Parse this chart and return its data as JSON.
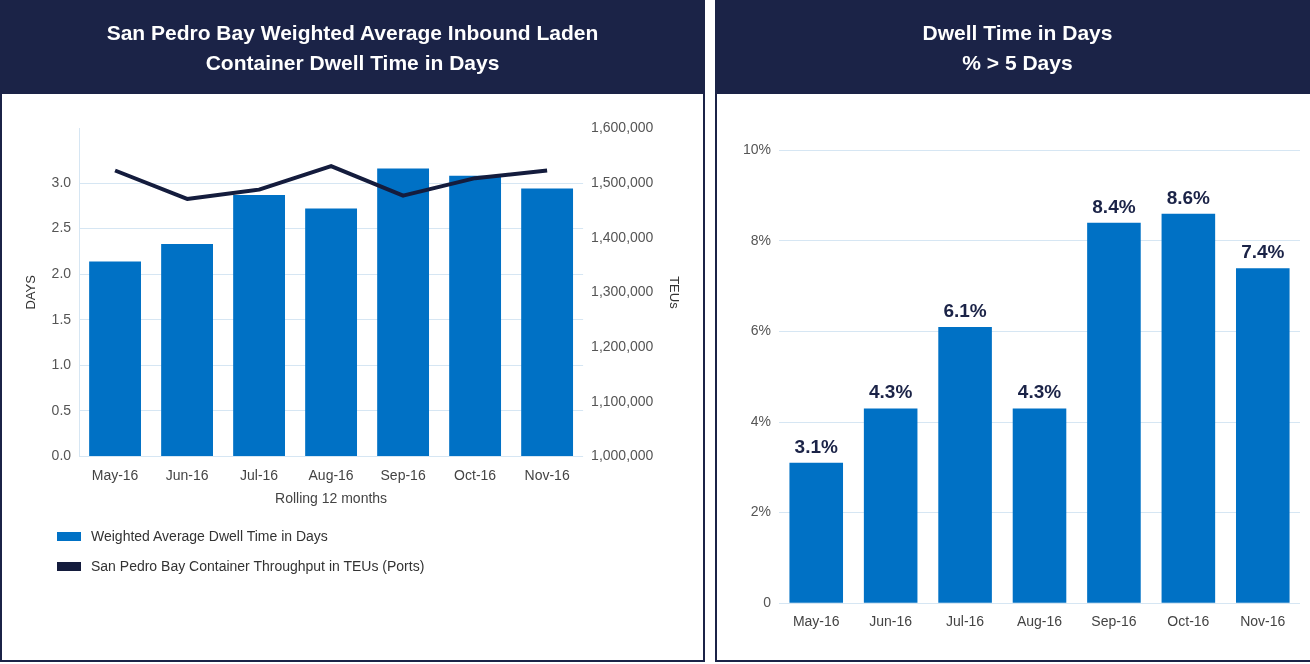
{
  "chart_data": [
    {
      "type": "bar",
      "title": "San Pedro Bay Weighted Average Inbound Laden Container Dwell Time in Days",
      "xlabel": "Rolling 12 months",
      "ylabel": "DAYS",
      "y2label": "TEUs",
      "categories": [
        "May-16",
        "Jun-16",
        "Jul-16",
        "Aug-16",
        "Sep-16",
        "Oct-16",
        "Nov-16"
      ],
      "series": [
        {
          "name": "Weighted Average Dwell Time in Days",
          "type": "bar",
          "color": "#0071c5",
          "values": [
            2.14,
            2.33,
            2.87,
            2.72,
            3.16,
            3.08,
            2.94
          ]
        },
        {
          "name": "San Pedro Bay Container Throughput in TEUs (Ports)",
          "type": "line",
          "axis": "y2",
          "color": "#141c3d",
          "values": [
            1523000,
            1471000,
            1488000,
            1531000,
            1477000,
            1509000,
            1523000
          ]
        }
      ],
      "ylim": [
        0,
        3.6
      ],
      "yticks": [
        {
          "value": 0,
          "label": "0.0"
        },
        0.5,
        {
          "value": 1,
          "label": "1.0"
        },
        1.5,
        {
          "value": 2,
          "label": "2.0"
        },
        2.5,
        {
          "value": 3,
          "label": "3.0"
        }
      ],
      "y2lim": [
        1000000,
        1600000
      ],
      "y2ticks": [
        {
          "value": 1000000,
          "label": "1,000,000"
        },
        {
          "value": 1100000,
          "label": "1,100,000"
        },
        {
          "value": 1200000,
          "label": "1,200,000"
        },
        {
          "value": 1300000,
          "label": "1,300,000"
        },
        {
          "value": 1400000,
          "label": "1,400,000"
        },
        {
          "value": 1500000,
          "label": "1,500,000"
        },
        {
          "value": 1600000,
          "label": "1,600,000"
        }
      ],
      "grid": "y",
      "legend": "bottom",
      "marker": "none"
    },
    {
      "type": "bar",
      "title": "Dwell Time in Days\n% > 5 Days",
      "categories": [
        "May-16",
        "Jun-16",
        "Jul-16",
        "Aug-16",
        "Sep-16",
        "Oct-16",
        "Nov-16"
      ],
      "values": [
        3.1,
        4.3,
        6.1,
        4.3,
        8.4,
        8.6,
        7.4
      ],
      "color": "#0071c5",
      "value_labels": [
        "3.1%",
        "4.3%",
        "6.1%",
        "4.3%",
        "8.4%",
        "8.6%",
        "7.4%"
      ],
      "ylim": [
        0,
        10
      ],
      "yticks": [
        0,
        {
          "value": 2,
          "label": "2%"
        },
        {
          "value": 4,
          "label": "4%"
        },
        {
          "value": 6,
          "label": "6%"
        },
        {
          "value": 8,
          "label": "8%"
        },
        {
          "value": 10,
          "label": "10%"
        }
      ],
      "grid": "y"
    }
  ]
}
